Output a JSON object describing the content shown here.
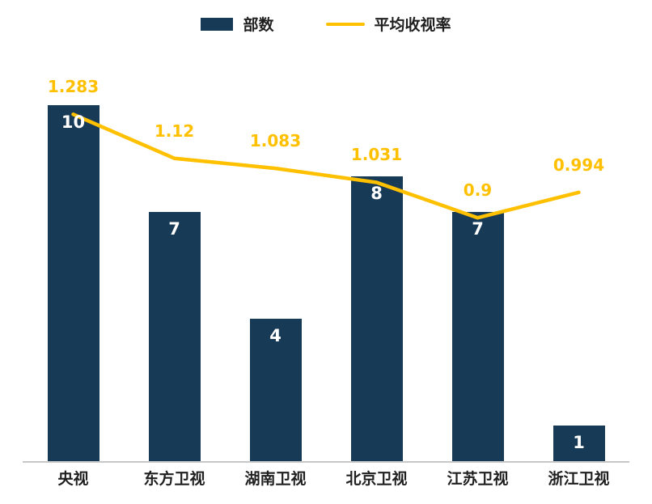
{
  "legend": {
    "bar_label": "部数",
    "line_label": "平均收视率"
  },
  "colors": {
    "bar": "#173A56",
    "line": "#FFC000",
    "bar_value_text": "#FFFFFF",
    "axis_line": "#C7C7C7",
    "category_text": "#1F1F1F"
  },
  "chart_data": {
    "type": "bar+line",
    "categories": [
      "央视",
      "东方卫视",
      "湖南卫视",
      "北京卫视",
      "江苏卫视",
      "浙江卫视"
    ],
    "series": [
      {
        "name": "部数",
        "type": "bar",
        "axis": "left",
        "values": [
          10,
          7,
          4,
          8,
          7,
          1
        ]
      },
      {
        "name": "平均收视率",
        "type": "line",
        "axis": "right",
        "values": [
          1.283,
          1.12,
          1.083,
          1.031,
          0.9,
          0.994
        ]
      }
    ],
    "bar_value_labels": [
      "10",
      "7",
      "4",
      "8",
      "7",
      "1"
    ],
    "line_value_labels": [
      "1.283",
      "1.12",
      "1.083",
      "1.031",
      "0.9",
      "0.994"
    ],
    "left_axis_range": [
      0,
      12
    ],
    "right_axis_range": [
      0,
      1.58
    ],
    "grid": false,
    "y_axis_visible": false,
    "legend_position": "top"
  }
}
